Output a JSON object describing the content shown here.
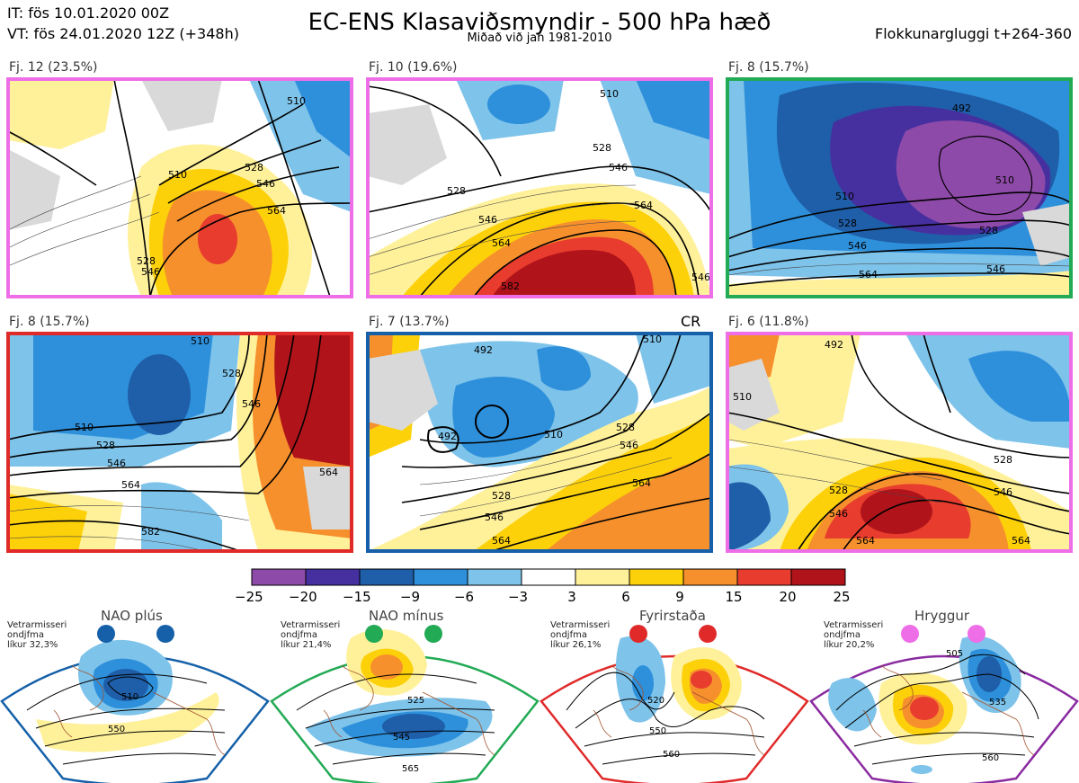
{
  "header": {
    "it": "IT: fös 10.01.2020 00Z",
    "vt": "VT: fös 24.01.2020 12Z  (+348h)",
    "title": "EC-ENS Klasaviðsmyndir - 500 hPa hæð",
    "subtitle": "Miðað við jan 1981-2010",
    "window": "Flokkunargluggi t+264-360"
  },
  "panels": [
    {
      "label": "Fj. 12 (23.5%)",
      "border": "#ee6ee8"
    },
    {
      "label": "Fj. 10 (19.6%)",
      "border": "#ee6ee8"
    },
    {
      "label": "Fj. 8 (15.7%)",
      "border": "#22aa55"
    },
    {
      "label": "Fj. 8 (15.7%)",
      "border": "#e02a2a"
    },
    {
      "label": "Fj. 7 (13.7%)",
      "border": "#1560a8"
    },
    {
      "label": "Fj. 6 (11.8%)",
      "border": "#ee6ee8"
    }
  ],
  "cr_label": "CR",
  "contour_labels": {
    "p0": [
      "510",
      "528",
      "546",
      "564",
      "510",
      "528",
      "546"
    ],
    "p1": [
      "510",
      "528",
      "546",
      "564",
      "528",
      "546",
      "564",
      "582",
      "546"
    ],
    "p2": [
      "492",
      "510",
      "528",
      "546",
      "564",
      "510",
      "528",
      "546"
    ],
    "p3": [
      "510",
      "528",
      "546",
      "564",
      "582",
      "510",
      "528",
      "546",
      "564"
    ],
    "p4": [
      "492",
      "492",
      "510",
      "528",
      "546",
      "564",
      "528",
      "546",
      "564",
      "510"
    ],
    "p5": [
      "492",
      "510",
      "528",
      "546",
      "564",
      "528",
      "546",
      "564"
    ]
  },
  "colorbar": {
    "colors": [
      "#8e4aa8",
      "#4630a0",
      "#1f5ea8",
      "#2e90db",
      "#7ec3ea",
      "#ffffff",
      "#fff19a",
      "#fdd10a",
      "#f6902c",
      "#e83c2e",
      "#b0141a"
    ],
    "ticks": [
      "−25",
      "−20",
      "−15",
      "−9",
      "−6",
      "−3",
      "3",
      "6",
      "9",
      "15",
      "20",
      "25"
    ]
  },
  "regimes": [
    {
      "name": "NAO plús",
      "note1": "Vetrarmisseri",
      "note2": "ondjfma",
      "note3": "líkur 32,3%",
      "dot": "#1560a8",
      "border": "#1560a8",
      "contours": [
        "510",
        "550"
      ]
    },
    {
      "name": "NAO mínus",
      "note1": "Vetrarmisseri",
      "note2": "ondjfma",
      "note3": "líkur 21,4%",
      "dot": "#22aa55",
      "border": "#22aa55",
      "contours": [
        "525",
        "545",
        "565"
      ]
    },
    {
      "name": "Fyrirstaða",
      "note1": "Vetrarmisseri",
      "note2": "ondjfma",
      "note3": "líkur 26,1%",
      "dot": "#e02a2a",
      "border": "#e02a2a",
      "contours": [
        "520",
        "550",
        "560"
      ]
    },
    {
      "name": "Hryggur",
      "note1": "Vetrarmisseri",
      "note2": "ondjfma",
      "note3": "líkur 20,2%",
      "dot": "#ee6ee8",
      "border": "#8a2aa0",
      "contours": [
        "505",
        "535",
        "560"
      ]
    }
  ]
}
